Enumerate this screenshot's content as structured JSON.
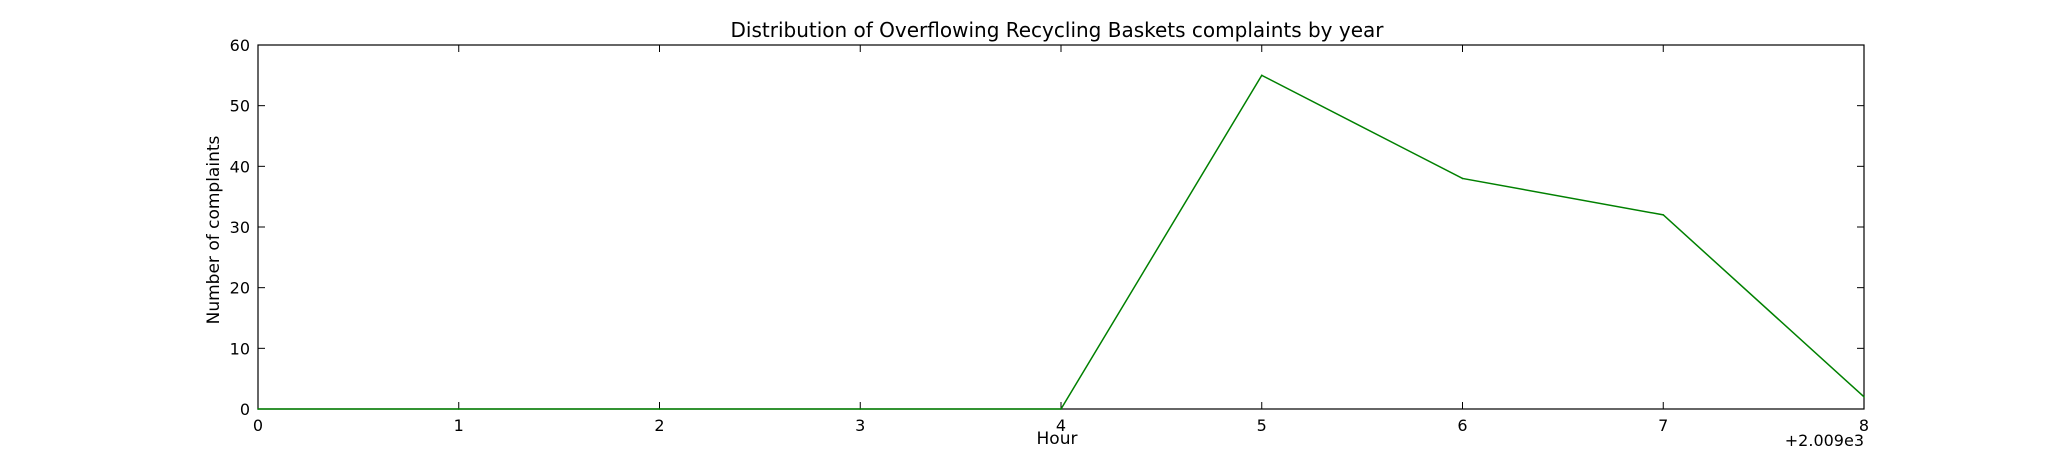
{
  "chart_data": {
    "type": "line",
    "title": "Distribution of  Overflowing Recycling Baskets complaints by year",
    "xlabel": "Hour",
    "ylabel": "Number of complaints",
    "x_offset_label": "+2.009e3",
    "x": [
      0,
      1,
      2,
      3,
      4,
      5,
      6,
      7,
      8
    ],
    "series": [
      {
        "values": [
          0,
          0,
          0,
          0,
          0,
          55,
          38,
          32,
          2
        ],
        "color": "#008000"
      }
    ],
    "xlim": [
      0,
      8
    ],
    "ylim": [
      0,
      60
    ],
    "xticks": [
      0,
      1,
      2,
      3,
      4,
      5,
      6,
      7,
      8
    ],
    "yticks": [
      0,
      10,
      20,
      30,
      40,
      50,
      60
    ],
    "grid": false,
    "legend": "none"
  }
}
